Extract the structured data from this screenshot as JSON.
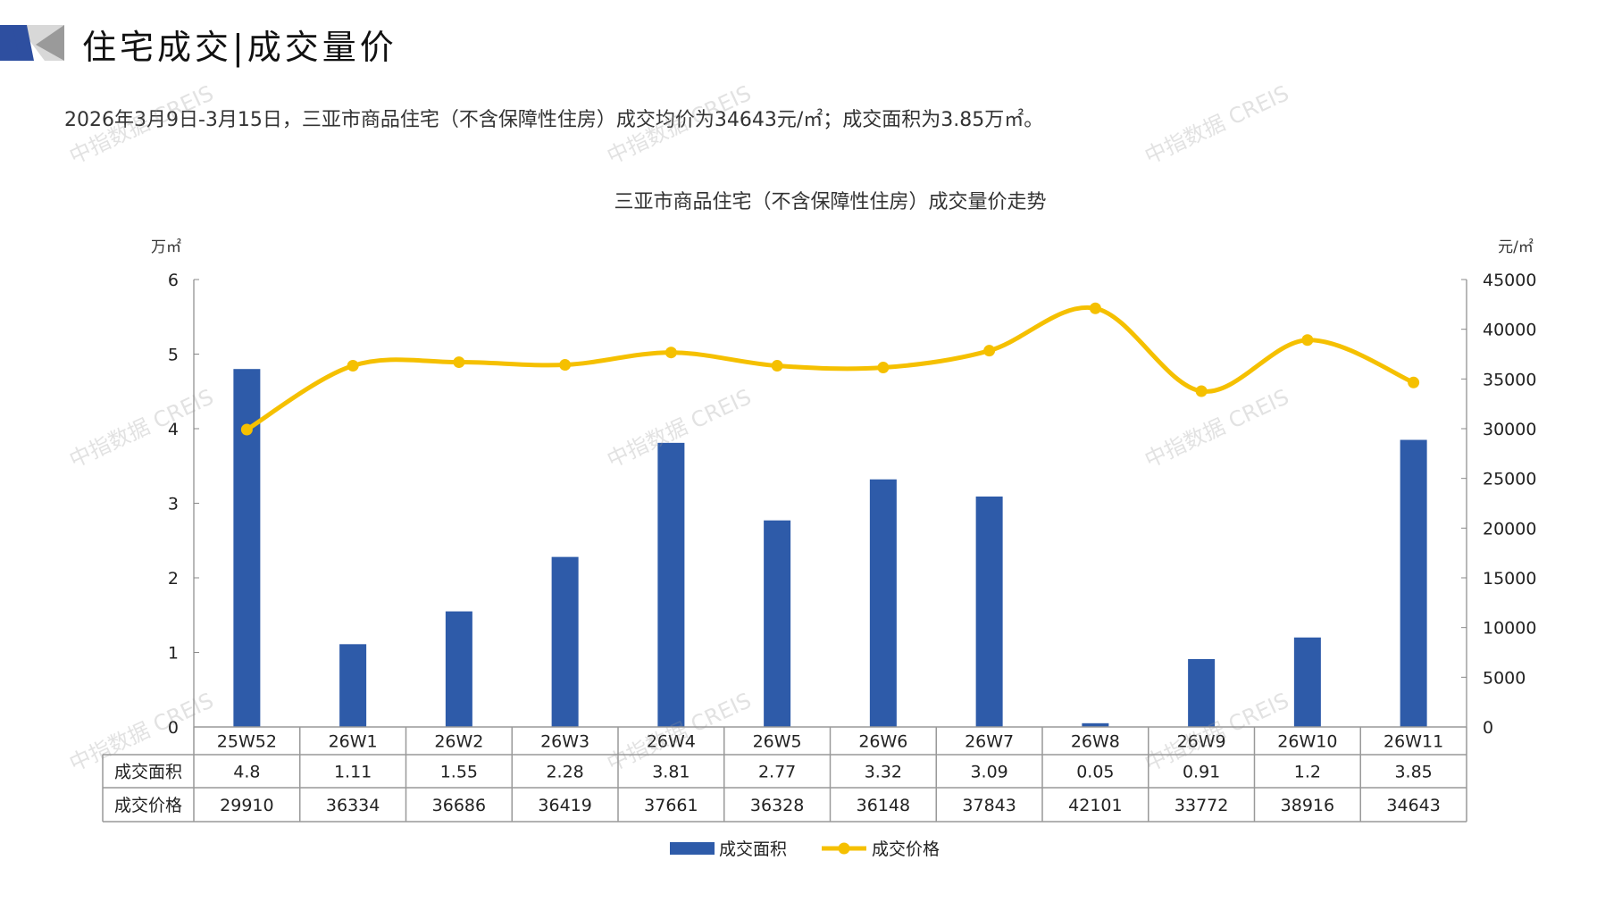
{
  "header": {
    "title": "住宅成交|成交量价"
  },
  "summary": "2026年3月9日-3月15日，三亚市商品住宅（不含保障性住房）成交均价为34643元/㎡；成交面积为3.85万㎡。",
  "watermark": "中指数据 CREIS",
  "colors": {
    "bar": "#2E5BA9",
    "line": "#F5C000",
    "axis": "#888888"
  },
  "chart_data": {
    "type": "bar+line",
    "title": "三亚市商品住宅（不含保障性住房）成交量价走势",
    "categories": [
      "25W52",
      "26W1",
      "26W2",
      "26W3",
      "26W4",
      "26W5",
      "26W6",
      "26W7",
      "26W8",
      "26W9",
      "26W10",
      "26W11"
    ],
    "series": [
      {
        "name": "成交面积",
        "type": "bar",
        "axis": "left",
        "values": [
          4.8,
          1.11,
          1.55,
          2.28,
          3.81,
          2.77,
          3.32,
          3.09,
          0.05,
          0.91,
          1.2,
          3.85
        ]
      },
      {
        "name": "成交价格",
        "type": "line",
        "axis": "right",
        "values": [
          29910,
          36334,
          36686,
          36419,
          37661,
          36328,
          36148,
          37843,
          42101,
          33772,
          38916,
          34643
        ]
      }
    ],
    "ylabel_left": "万㎡",
    "ylabel_right": "元/㎡",
    "ylim_left": [
      0,
      6
    ],
    "ylim_right": [
      0,
      45000
    ],
    "yticks_left": [
      "0",
      "1",
      "2",
      "3",
      "4",
      "5",
      "6"
    ],
    "yticks_right": [
      "0",
      "5000",
      "10000",
      "15000",
      "20000",
      "25000",
      "30000",
      "35000",
      "40000",
      "45000"
    ],
    "table_row_labels": [
      "成交面积",
      "成交价格"
    ],
    "table_area": [
      "4.8",
      "1.11",
      "1.55",
      "2.28",
      "3.81",
      "2.77",
      "3.32",
      "3.09",
      "0.05",
      "0.91",
      "1.2",
      "3.85"
    ],
    "table_price": [
      "29910",
      "36334",
      "36686",
      "36419",
      "37661",
      "36328",
      "36148",
      "37843",
      "42101",
      "33772",
      "38916",
      "34643"
    ],
    "legend": [
      "成交面积",
      "成交价格"
    ],
    "legend_position": "bottom",
    "grid": false
  }
}
